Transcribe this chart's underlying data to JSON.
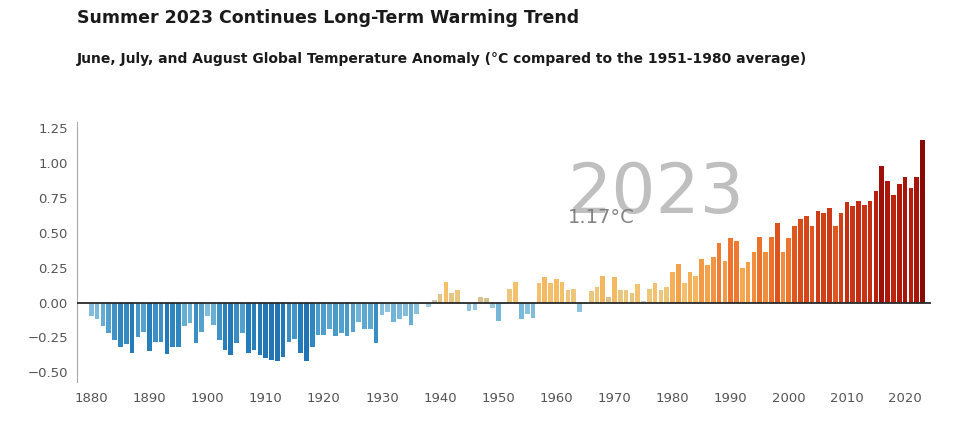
{
  "title": "Summer 2023 Continues Long-Term Warming Trend",
  "subtitle": "June, July, and August Global Temperature Anomaly (°C compared to the 1951-1980 average)",
  "annotation_year": "2023",
  "annotation_value": "1.17°C",
  "ylim": [
    -0.57,
    1.3
  ],
  "yticks": [
    -0.5,
    -0.25,
    0.0,
    0.25,
    0.5,
    0.75,
    1.0,
    1.25
  ],
  "background_color": "#ffffff",
  "years": [
    1880,
    1881,
    1882,
    1883,
    1884,
    1885,
    1886,
    1887,
    1888,
    1889,
    1890,
    1891,
    1892,
    1893,
    1894,
    1895,
    1896,
    1897,
    1898,
    1899,
    1900,
    1901,
    1902,
    1903,
    1904,
    1905,
    1906,
    1907,
    1908,
    1909,
    1910,
    1911,
    1912,
    1913,
    1914,
    1915,
    1916,
    1917,
    1918,
    1919,
    1920,
    1921,
    1922,
    1923,
    1924,
    1925,
    1926,
    1927,
    1928,
    1929,
    1930,
    1931,
    1932,
    1933,
    1934,
    1935,
    1936,
    1937,
    1938,
    1939,
    1940,
    1941,
    1942,
    1943,
    1944,
    1945,
    1946,
    1947,
    1948,
    1949,
    1950,
    1951,
    1952,
    1953,
    1954,
    1955,
    1956,
    1957,
    1958,
    1959,
    1960,
    1961,
    1962,
    1963,
    1964,
    1965,
    1966,
    1967,
    1968,
    1969,
    1970,
    1971,
    1972,
    1973,
    1974,
    1975,
    1976,
    1977,
    1978,
    1979,
    1980,
    1981,
    1982,
    1983,
    1984,
    1985,
    1986,
    1987,
    1988,
    1989,
    1990,
    1991,
    1992,
    1993,
    1994,
    1995,
    1996,
    1997,
    1998,
    1999,
    2000,
    2001,
    2002,
    2003,
    2004,
    2005,
    2006,
    2007,
    2008,
    2009,
    2010,
    2011,
    2012,
    2013,
    2014,
    2015,
    2016,
    2017,
    2018,
    2019,
    2020,
    2021,
    2022,
    2023
  ],
  "anomalies": [
    -0.1,
    -0.12,
    -0.17,
    -0.22,
    -0.27,
    -0.32,
    -0.3,
    -0.36,
    -0.25,
    -0.21,
    -0.35,
    -0.28,
    -0.28,
    -0.37,
    -0.32,
    -0.32,
    -0.17,
    -0.15,
    -0.29,
    -0.21,
    -0.1,
    -0.16,
    -0.27,
    -0.34,
    -0.38,
    -0.29,
    -0.22,
    -0.36,
    -0.34,
    -0.38,
    -0.4,
    -0.41,
    -0.42,
    -0.39,
    -0.28,
    -0.26,
    -0.36,
    -0.42,
    -0.32,
    -0.23,
    -0.23,
    -0.19,
    -0.24,
    -0.22,
    -0.24,
    -0.21,
    -0.14,
    -0.19,
    -0.19,
    -0.29,
    -0.09,
    -0.07,
    -0.14,
    -0.12,
    -0.1,
    -0.16,
    -0.08,
    -0.01,
    -0.03,
    0.02,
    0.06,
    0.15,
    0.07,
    0.09,
    -0.01,
    -0.06,
    -0.05,
    0.04,
    0.03,
    -0.04,
    -0.13,
    -0.01,
    0.1,
    0.15,
    -0.12,
    -0.08,
    -0.11,
    0.14,
    0.18,
    0.14,
    0.17,
    0.15,
    0.09,
    0.1,
    -0.07,
    -0.01,
    0.08,
    0.11,
    0.19,
    0.04,
    0.18,
    0.09,
    0.09,
    0.07,
    0.13,
    0.01,
    0.1,
    0.14,
    0.09,
    0.11,
    0.22,
    0.28,
    0.14,
    0.22,
    0.19,
    0.31,
    0.27,
    0.33,
    0.43,
    0.3,
    0.46,
    0.44,
    0.25,
    0.29,
    0.36,
    0.47,
    0.36,
    0.47,
    0.57,
    0.36,
    0.46,
    0.55,
    0.6,
    0.62,
    0.55,
    0.66,
    0.64,
    0.68,
    0.55,
    0.64,
    0.72,
    0.69,
    0.73,
    0.7,
    0.73,
    0.8,
    0.98,
    0.87,
    0.77,
    0.85,
    0.9,
    0.82,
    0.9,
    1.17
  ]
}
